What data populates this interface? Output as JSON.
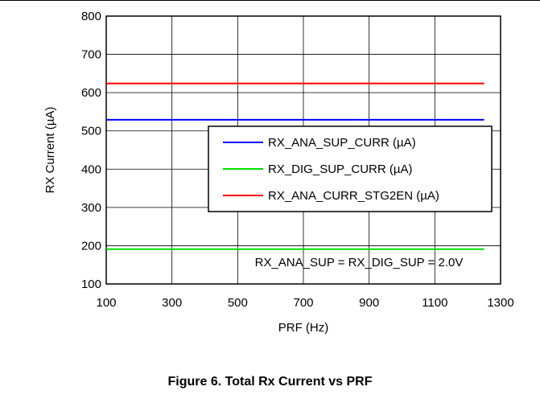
{
  "caption": "Figure 6. Total Rx Current vs PRF",
  "chart_data": {
    "type": "line",
    "title": "",
    "xlabel": "PRF (Hz)",
    "ylabel": "RX Current (µA)",
    "xlim": [
      100,
      1300
    ],
    "ylim": [
      100,
      800
    ],
    "xticks": [
      100,
      300,
      500,
      700,
      900,
      1100,
      1300
    ],
    "yticks": [
      100,
      200,
      300,
      400,
      500,
      600,
      700,
      800
    ],
    "grid": true,
    "legend_position": "center-right",
    "x": [
      100,
      1250
    ],
    "series": [
      {
        "name": "RX_ANA_SUP_CURR (µA)",
        "color": "#0000ff",
        "values": [
          529,
          529
        ]
      },
      {
        "name": "RX_DIG_SUP_CURR (µA)",
        "color": "#00e000",
        "values": [
          191,
          191
        ]
      },
      {
        "name": "RX_ANA_CURR_STG2EN (µA)",
        "color": "#ff0000",
        "values": [
          624,
          624
        ]
      }
    ],
    "annotations": [
      "RX_ANA_SUP = RX_DIG_SUP = 2.0V"
    ]
  }
}
